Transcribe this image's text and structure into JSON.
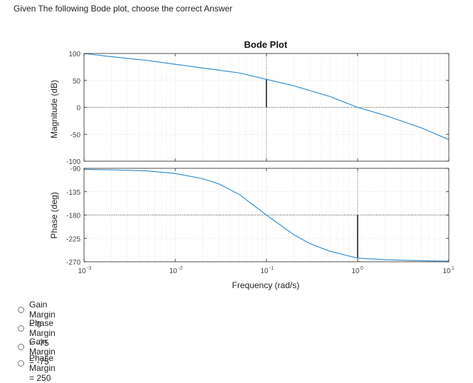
{
  "question": {
    "text": "Given The following Bode plot, choose the correct Answer"
  },
  "chart_data": {
    "type": "line",
    "title": "Bode Plot",
    "xlabel": "Frequency (rad/s)",
    "xscale": "log",
    "xlim": [
      0.001,
      10
    ],
    "x_tick_labels": [
      "10-3",
      "10-2",
      "10-1",
      "100",
      "101"
    ],
    "grid": true,
    "subplots": [
      {
        "name": "magnitude",
        "ylabel": "Magnitude (dB)",
        "ylim": [
          -100,
          100
        ],
        "y_ticks": [
          100,
          50,
          0,
          -50,
          -100
        ],
        "series": [
          {
            "x": [
              0.001,
              0.002,
              0.005,
              0.01,
              0.02,
              0.05,
              0.1,
              0.2,
              0.5,
              1,
              2,
              5,
              10
            ],
            "values": [
              100,
              94,
              87,
              80,
              73,
              64,
              52,
              40,
              20,
              0,
              -15,
              -38,
              -60
            ]
          }
        ],
        "reference_line": 0,
        "markers": [
          {
            "x": 0.1,
            "from": 0,
            "to": 52
          }
        ]
      },
      {
        "name": "phase",
        "ylabel": "Phase (deg)",
        "ylim": [
          -270,
          -90
        ],
        "y_ticks": [
          -90,
          -135,
          -180,
          -225,
          -270
        ],
        "series": [
          {
            "x": [
              0.001,
              0.002,
              0.005,
              0.01,
              0.02,
              0.03,
              0.05,
              0.1,
              0.2,
              0.3,
              0.5,
              1,
              2,
              5,
              10
            ],
            "values": [
              -92,
              -93,
              -95,
              -100,
              -110,
              -120,
              -140,
              -180,
              -218,
              -235,
              -250,
              -263,
              -266,
              -268,
              -269
            ]
          }
        ],
        "reference_line": -180,
        "markers": [
          {
            "x": 1,
            "from": -180,
            "to": -263
          }
        ]
      }
    ]
  },
  "options": [
    {
      "label": "Gain Margin = 0"
    },
    {
      "label": "Phase Margin = -75"
    },
    {
      "label": "Gain Margin = -75"
    },
    {
      "label": "Phase Margin = 250"
    }
  ],
  "colors": {
    "line": "#3a8fd0",
    "grid": "#d8d8d8",
    "axis": "#262626",
    "marker": "#333333"
  }
}
